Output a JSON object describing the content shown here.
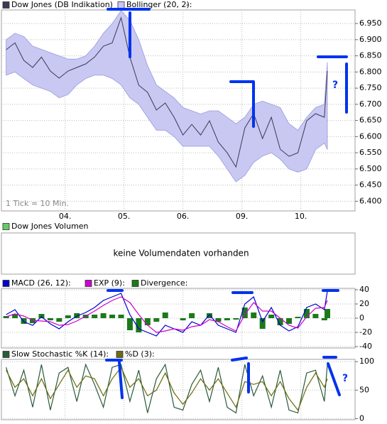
{
  "chart_data": [
    {
      "type": "price-band",
      "series": [
        {
          "name": "Dow Jones (DB Indikation)",
          "color": "#3a3a55",
          "values": [
            6869,
            6890,
            6836,
            6814,
            6846,
            6803,
            6781,
            6803,
            6814,
            6825,
            6846,
            6880,
            6890,
            6968,
            6846,
            6759,
            6737,
            6682,
            6704,
            6660,
            6605,
            6638,
            6605,
            6649,
            6583,
            6550,
            6506,
            6627,
            6671,
            6594,
            6660,
            6561,
            6539,
            6550,
            6649,
            6671,
            6660,
            6803
          ]
        }
      ],
      "bands": {
        "name": "Bollinger (20, 2):",
        "value_text": "-",
        "color": "#c8c8f2",
        "stroke": "#9a9ae0",
        "upper": [
          6900,
          6920,
          6910,
          6880,
          6870,
          6860,
          6850,
          6840,
          6840,
          6850,
          6880,
          6920,
          6950,
          6990,
          6960,
          6900,
          6820,
          6760,
          6740,
          6720,
          6690,
          6680,
          6670,
          6680,
          6680,
          6660,
          6640,
          6660,
          6700,
          6710,
          6700,
          6690,
          6640,
          6620,
          6660,
          6690,
          6700,
          6830
        ],
        "lower": [
          6790,
          6800,
          6780,
          6760,
          6750,
          6740,
          6720,
          6730,
          6760,
          6780,
          6790,
          6790,
          6780,
          6760,
          6720,
          6700,
          6660,
          6620,
          6620,
          6600,
          6570,
          6570,
          6570,
          6570,
          6540,
          6500,
          6460,
          6480,
          6520,
          6540,
          6550,
          6530,
          6500,
          6490,
          6500,
          6560,
          6580,
          6560
        ]
      },
      "x": [
        0,
        0.15,
        0.3,
        0.45,
        0.6,
        0.75,
        0.9,
        1.05,
        1.2,
        1.35,
        1.5,
        1.65,
        1.8,
        1.95,
        2.1,
        2.25,
        2.4,
        2.55,
        2.7,
        2.85,
        3,
        3.15,
        3.3,
        3.45,
        3.6,
        3.75,
        3.9,
        4.05,
        4.2,
        4.35,
        4.5,
        4.65,
        4.8,
        4.95,
        5.1,
        5.25,
        5.4,
        5.45
      ],
      "xlim": [
        -0.08,
        5.92
      ],
      "xticks": [
        {
          "value": 1,
          "label": "04."
        },
        {
          "value": 2,
          "label": "05."
        },
        {
          "value": 3,
          "label": "06."
        },
        {
          "value": 4,
          "label": "09."
        },
        {
          "value": 5,
          "label": "10."
        }
      ],
      "ylim": [
        6370,
        6992
      ],
      "yticks": [
        {
          "value": 6400,
          "label": "6.400"
        },
        {
          "value": 6450,
          "label": "6.450"
        },
        {
          "value": 6500,
          "label": "6.500"
        },
        {
          "value": 6550,
          "label": "6.550"
        },
        {
          "value": 6600,
          "label": "6.600"
        },
        {
          "value": 6650,
          "label": "6.650"
        },
        {
          "value": 6700,
          "label": "6.700"
        },
        {
          "value": 6750,
          "label": "6.750"
        },
        {
          "value": 6800,
          "label": "6.800"
        },
        {
          "value": 6850,
          "label": "6.850"
        },
        {
          "value": 6900,
          "label": "6.900"
        },
        {
          "value": 6950,
          "label": "6.950"
        }
      ],
      "grid": true,
      "annotations": [
        "1 Tick = 10 Min.",
        "?"
      ]
    },
    {
      "type": "message",
      "legend": "Dow Jones Volumen",
      "color": "#66cc66",
      "message": "keine Volumendaten vorhanden"
    },
    {
      "type": "indicator",
      "x": [
        0,
        0.15,
        0.3,
        0.45,
        0.6,
        0.75,
        0.9,
        1.05,
        1.2,
        1.35,
        1.5,
        1.65,
        1.8,
        1.95,
        2.1,
        2.25,
        2.4,
        2.55,
        2.7,
        2.85,
        3,
        3.15,
        3.3,
        3.45,
        3.6,
        3.75,
        3.9,
        4.05,
        4.2,
        4.35,
        4.5,
        4.65,
        4.8,
        4.95,
        5.1,
        5.25,
        5.4,
        5.45
      ],
      "xlim": [
        -0.08,
        5.92
      ],
      "series": [
        {
          "name": "MACD (26, 12):",
          "color": "#0000cc",
          "values": [
            5,
            12,
            -5,
            -10,
            2,
            -8,
            -15,
            -5,
            3,
            8,
            15,
            25,
            30,
            35,
            5,
            -15,
            -20,
            -25,
            -10,
            -15,
            -20,
            -5,
            -10,
            5,
            -10,
            -15,
            -20,
            20,
            30,
            -5,
            15,
            -10,
            -18,
            -12,
            15,
            20,
            12,
            38
          ]
        },
        {
          "name": "EXP (9):",
          "color": "#cc00cc",
          "values": [
            2,
            6,
            3,
            -3,
            -4,
            -5,
            -10,
            -9,
            -4,
            3,
            10,
            18,
            25,
            30,
            22,
            5,
            -10,
            -20,
            -18,
            -15,
            -17,
            -12,
            -10,
            -2,
            -5,
            -12,
            -18,
            5,
            22,
            10,
            10,
            0,
            -10,
            -14,
            2,
            14,
            15,
            25
          ]
        },
        {
          "name": "Divergence:",
          "color": "#1a7a1a",
          "kind": "bar",
          "values": [
            3,
            6,
            -8,
            -7,
            6,
            -3,
            -5,
            4,
            7,
            5,
            5,
            7,
            5,
            5,
            -17,
            -20,
            -10,
            -5,
            8,
            0,
            -3,
            7,
            0,
            7,
            -5,
            -3,
            -2,
            15,
            8,
            -15,
            5,
            -10,
            -8,
            2,
            13,
            6,
            -3,
            13
          ]
        }
      ],
      "ylim": [
        -42,
        42
      ],
      "yticks": [
        -40,
        -20,
        0,
        20,
        40
      ],
      "grid": true
    },
    {
      "type": "indicator",
      "x": [
        0,
        0.15,
        0.3,
        0.45,
        0.6,
        0.75,
        0.9,
        1.05,
        1.2,
        1.35,
        1.5,
        1.65,
        1.8,
        1.95,
        2.1,
        2.25,
        2.4,
        2.55,
        2.7,
        2.85,
        3,
        3.15,
        3.3,
        3.45,
        3.6,
        3.75,
        3.9,
        4.05,
        4.2,
        4.35,
        4.5,
        4.65,
        4.8,
        4.95,
        5.1,
        5.25,
        5.4,
        5.45
      ],
      "xlim": [
        -0.08,
        5.92
      ],
      "series": [
        {
          "name": "Slow Stochastic %K (14):",
          "color": "#2a5a3a",
          "values": [
            90,
            40,
            85,
            20,
            95,
            15,
            80,
            90,
            30,
            95,
            60,
            20,
            90,
            95,
            30,
            85,
            10,
            70,
            95,
            20,
            15,
            60,
            85,
            30,
            90,
            20,
            10,
            95,
            40,
            75,
            20,
            85,
            15,
            10,
            80,
            85,
            30,
            95
          ]
        },
        {
          "name": "%D (3):",
          "color": "#6b6b10",
          "values": [
            85,
            55,
            70,
            40,
            70,
            35,
            60,
            85,
            55,
            75,
            70,
            40,
            70,
            90,
            55,
            70,
            40,
            50,
            80,
            45,
            25,
            45,
            70,
            50,
            70,
            45,
            20,
            65,
            60,
            65,
            40,
            65,
            35,
            15,
            55,
            80,
            55,
            70
          ]
        }
      ],
      "ylim": [
        -2,
        104
      ],
      "yticks": [
        0,
        50,
        100
      ],
      "grid": true,
      "annotations": [
        "?"
      ]
    }
  ]
}
